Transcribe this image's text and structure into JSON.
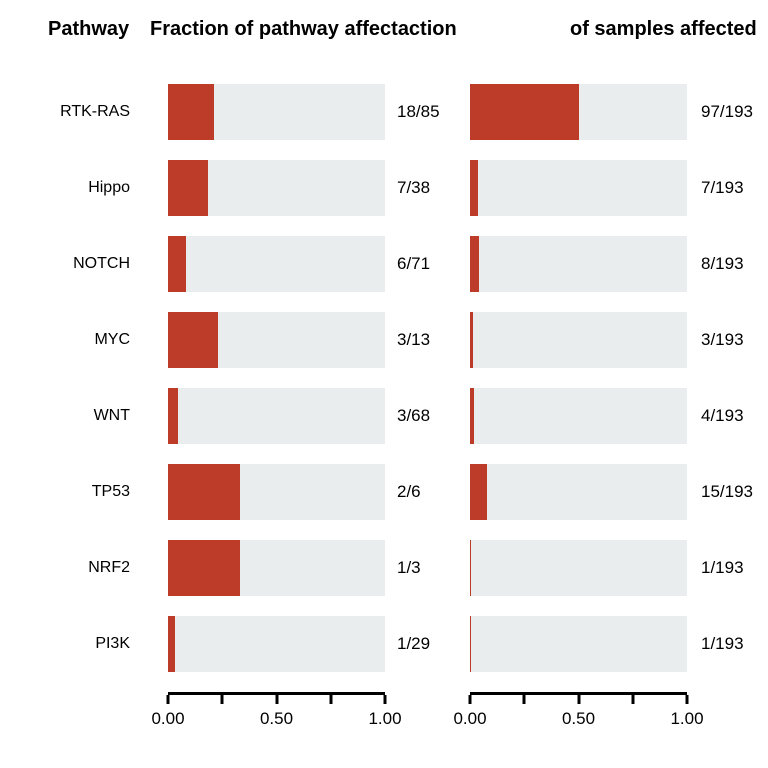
{
  "headers": {
    "pathway": "Pathway",
    "fraction_pathway": "Fraction of pathway affectaction",
    "fraction_samples": "of samples affected"
  },
  "chart_data": {
    "type": "bar",
    "orientation": "horizontal",
    "columns": [
      "Fraction of pathway affectaction",
      "of samples affected"
    ],
    "xlim": [
      0,
      1
    ],
    "x_ticks": [
      0,
      0.25,
      0.5,
      0.75,
      1
    ],
    "x_tick_labels": [
      "0.00",
      "0.50",
      "1.00"
    ],
    "bar_color": "#bc3c29",
    "track_color": "#eaedee",
    "rows": [
      {
        "pathway": "RTK-RAS",
        "frac_pathway": 0.2118,
        "label_pathway": "18/85",
        "frac_samples": 0.5026,
        "label_samples": "97/193"
      },
      {
        "pathway": "Hippo",
        "frac_pathway": 0.1842,
        "label_pathway": "7/38",
        "frac_samples": 0.0363,
        "label_samples": "7/193"
      },
      {
        "pathway": "NOTCH",
        "frac_pathway": 0.0845,
        "label_pathway": "6/71",
        "frac_samples": 0.0415,
        "label_samples": "8/193"
      },
      {
        "pathway": "MYC",
        "frac_pathway": 0.2308,
        "label_pathway": "3/13",
        "frac_samples": 0.0155,
        "label_samples": "3/193"
      },
      {
        "pathway": "WNT",
        "frac_pathway": 0.0441,
        "label_pathway": "3/68",
        "frac_samples": 0.0207,
        "label_samples": "4/193"
      },
      {
        "pathway": "TP53",
        "frac_pathway": 0.3333,
        "label_pathway": "2/6",
        "frac_samples": 0.0777,
        "label_samples": "15/193"
      },
      {
        "pathway": "NRF2",
        "frac_pathway": 0.3333,
        "label_pathway": "1/3",
        "frac_samples": 0.0052,
        "label_samples": "1/193"
      },
      {
        "pathway": "PI3K",
        "frac_pathway": 0.0345,
        "label_pathway": "1/29",
        "frac_samples": 0.0052,
        "label_samples": "1/193"
      }
    ]
  }
}
